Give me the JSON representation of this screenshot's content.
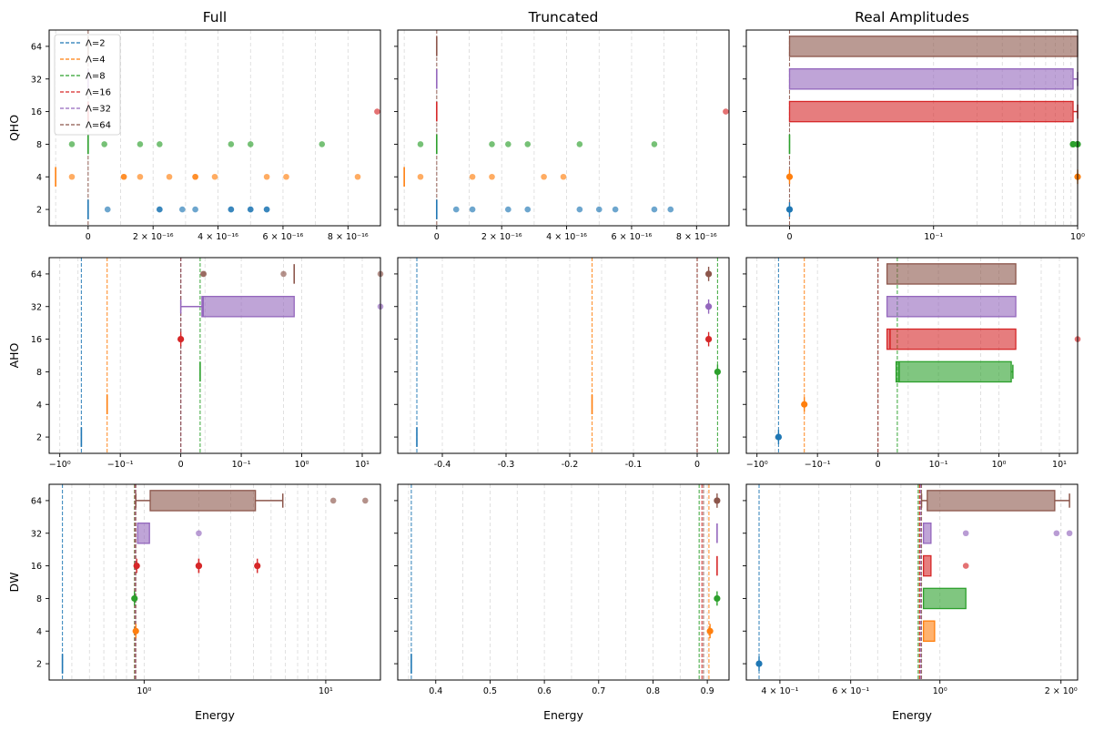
{
  "figure": {
    "column_titles": [
      "Full",
      "Truncated",
      "Real Amplitudes"
    ],
    "row_labels": [
      "QHO",
      "AHO",
      "DW"
    ],
    "xlabel": "Energy",
    "y_categories": [
      "2",
      "4",
      "8",
      "16",
      "32",
      "64"
    ],
    "legend": {
      "location": "upper-left of top-left panel",
      "entries": [
        "Λ=2",
        "Λ=4",
        "Λ=8",
        "Λ=16",
        "Λ=32",
        "Λ=64"
      ]
    },
    "colors": {
      "2": "#1f77b4",
      "4": "#ff7f0e",
      "8": "#2ca02c",
      "16": "#d62728",
      "32": "#9467bd",
      "64": "#8c564b",
      "grid": "#d9d9d9",
      "axis": "#000000"
    }
  },
  "chart_data": [
    {
      "panel": "QHO-Full",
      "type": "box",
      "row": "QHO",
      "col": "Full",
      "xscale": "linear",
      "xlim": [
        -1.2e-16,
        9e-16
      ],
      "xticks": [
        {
          "v": 0,
          "label": "0"
        },
        {
          "v": 2e-16,
          "label": "2 × 10⁻¹⁶"
        },
        {
          "v": 4e-16,
          "label": "4 × 10⁻¹⁶"
        },
        {
          "v": 6e-16,
          "label": "6 × 10⁻¹⁶"
        },
        {
          "v": 8e-16,
          "label": "8 × 10⁻¹⁶"
        }
      ],
      "grid_x": [
        -1e-16,
        1e-16,
        3e-16,
        5e-16,
        7e-16
      ],
      "reference_lines": [
        {
          "lambda": "64",
          "value": 0
        }
      ],
      "series": [
        {
          "lambda": "2",
          "marks": [
            0
          ],
          "outliers": [
            6e-17,
            2.2e-16,
            2.2e-16,
            2.9e-16,
            3.3e-16,
            4.4e-16,
            4.4e-16,
            5e-16,
            5e-16,
            5.5e-16,
            5.5e-16
          ]
        },
        {
          "lambda": "4",
          "marks": [
            -1e-16
          ],
          "outliers": [
            -5e-17,
            1.1e-16,
            1.1e-16,
            1.6e-16,
            2.5e-16,
            3.3e-16,
            3.3e-16,
            3.9e-16,
            5.5e-16,
            6.1e-16,
            8.3e-16
          ]
        },
        {
          "lambda": "8",
          "marks": [
            0
          ],
          "outliers": [
            -5e-17,
            5e-17,
            1.6e-16,
            2.2e-16,
            4.4e-16,
            5e-16,
            7.2e-16
          ]
        },
        {
          "lambda": "16",
          "marks": [
            0
          ],
          "outliers": [
            8.9e-16
          ]
        },
        {
          "lambda": "32",
          "marks": [
            0
          ],
          "outliers": []
        },
        {
          "lambda": "64",
          "marks": [
            0
          ],
          "outliers": []
        }
      ]
    },
    {
      "panel": "QHO-Truncated",
      "type": "box",
      "row": "QHO",
      "col": "Truncated",
      "xscale": "linear",
      "xlim": [
        -1.2e-16,
        9e-16
      ],
      "xticks": [
        {
          "v": 0,
          "label": "0"
        },
        {
          "v": 2e-16,
          "label": "2 × 10⁻¹⁶"
        },
        {
          "v": 4e-16,
          "label": "4 × 10⁻¹⁶"
        },
        {
          "v": 6e-16,
          "label": "6 × 10⁻¹⁶"
        },
        {
          "v": 8e-16,
          "label": "8 × 10⁻¹⁶"
        }
      ],
      "grid_x": [
        -1e-16,
        1e-16,
        3e-16,
        5e-16,
        7e-16
      ],
      "reference_lines": [
        {
          "lambda": "64",
          "value": 0
        }
      ],
      "series": [
        {
          "lambda": "2",
          "marks": [
            0
          ],
          "outliers": [
            6e-17,
            1.1e-16,
            2.2e-16,
            2.8e-16,
            4.4e-16,
            5e-16,
            5.5e-16,
            6.7e-16,
            7.2e-16
          ]
        },
        {
          "lambda": "4",
          "marks": [
            -1e-16
          ],
          "outliers": [
            -5e-17,
            1.1e-16,
            1.7e-16,
            3.3e-16,
            3.9e-16
          ]
        },
        {
          "lambda": "8",
          "marks": [
            0
          ],
          "outliers": [
            -5e-17,
            1.7e-16,
            2.2e-16,
            2.8e-16,
            4.4e-16,
            6.7e-16
          ]
        },
        {
          "lambda": "16",
          "marks": [
            0
          ],
          "outliers": [
            8.9e-16
          ]
        },
        {
          "lambda": "32",
          "marks": [
            0
          ],
          "outliers": []
        },
        {
          "lambda": "64",
          "marks": [
            0
          ],
          "outliers": []
        }
      ]
    },
    {
      "panel": "QHO-RealAmplitudes",
      "type": "box",
      "row": "QHO",
      "col": "Real Amplitudes",
      "xscale": "symlog",
      "linthresh": 0.1,
      "xlim": [
        -0.03,
        1.0
      ],
      "xticks": [
        {
          "v": 0,
          "label": "0"
        },
        {
          "v": 0.1,
          "label": "10⁻¹"
        },
        {
          "v": 1,
          "label": "10⁰"
        }
      ],
      "grid_x": [
        0.2,
        0.3,
        0.4,
        0.5,
        0.6,
        0.7,
        0.8,
        0.9
      ],
      "reference_lines": [
        {
          "lambda": "64",
          "value": 0
        }
      ],
      "series": [
        {
          "lambda": "2",
          "points": [
            0
          ]
        },
        {
          "lambda": "4",
          "points": [
            0,
            1.0
          ]
        },
        {
          "lambda": "8",
          "marks": [
            0
          ],
          "points": [
            0.93,
            1.0
          ]
        },
        {
          "lambda": "16",
          "box": [
            0,
            0.93
          ],
          "whisker_hi": 1.0
        },
        {
          "lambda": "32",
          "box": [
            0,
            0.93
          ],
          "whisker_hi": 1.0
        },
        {
          "lambda": "64",
          "box": [
            0,
            1.0
          ]
        }
      ]
    },
    {
      "panel": "AHO-Full",
      "type": "box",
      "row": "AHO",
      "col": "Full",
      "xscale": "symlog",
      "linthresh": 0.1,
      "xlim": [
        -1.5,
        20
      ],
      "xticks": [
        {
          "v": -1,
          "label": "−10⁰"
        },
        {
          "v": -0.1,
          "label": "−10⁻¹"
        },
        {
          "v": 0,
          "label": "0"
        },
        {
          "v": 0.1,
          "label": "10⁻¹"
        },
        {
          "v": 1,
          "label": "10⁰"
        },
        {
          "v": 10,
          "label": "10¹"
        }
      ],
      "grid_x": [
        -0.5,
        0.04,
        0.5,
        5
      ],
      "reference_lines": [
        {
          "lambda": "2",
          "value": -0.44
        },
        {
          "lambda": "4",
          "value": -0.165
        },
        {
          "lambda": "8",
          "value": 0.032
        },
        {
          "lambda": "16",
          "value": 0
        },
        {
          "lambda": "32",
          "value": 0
        },
        {
          "lambda": "64",
          "value": 0
        }
      ],
      "series": [
        {
          "lambda": "2",
          "marks": [
            -0.44
          ]
        },
        {
          "lambda": "4",
          "marks": [
            -0.165
          ]
        },
        {
          "lambda": "8",
          "marks": [
            0.032
          ]
        },
        {
          "lambda": "16",
          "points": [
            0
          ]
        },
        {
          "lambda": "32",
          "box": [
            0.035,
            0.75
          ],
          "whisker_lo": 0,
          "median": 0.037,
          "outliers": [
            20
          ]
        },
        {
          "lambda": "64",
          "marks": [
            0.75
          ],
          "outliers": [
            0.037,
            0.038,
            0.5,
            20
          ]
        }
      ]
    },
    {
      "panel": "AHO-Truncated",
      "type": "box",
      "row": "AHO",
      "col": "Truncated",
      "xscale": "linear",
      "xlim": [
        -0.47,
        0.05
      ],
      "xticks": [
        {
          "v": -0.4,
          "label": "-0.4"
        },
        {
          "v": -0.3,
          "label": "-0.3"
        },
        {
          "v": -0.2,
          "label": "-0.2"
        },
        {
          "v": -0.1,
          "label": "-0.1"
        },
        {
          "v": 0,
          "label": "0"
        }
      ],
      "grid_x": [
        -0.45,
        -0.35,
        -0.25,
        -0.15,
        -0.05,
        0.05
      ],
      "reference_lines": [
        {
          "lambda": "2",
          "value": -0.44
        },
        {
          "lambda": "4",
          "value": -0.165
        },
        {
          "lambda": "8",
          "value": 0.032
        },
        {
          "lambda": "16",
          "value": 0
        },
        {
          "lambda": "64",
          "value": 0
        }
      ],
      "series": [
        {
          "lambda": "2",
          "marks": [
            -0.44
          ]
        },
        {
          "lambda": "4",
          "marks": [
            -0.165
          ]
        },
        {
          "lambda": "8",
          "points": [
            0.032
          ]
        },
        {
          "lambda": "16",
          "points": [
            0.018
          ]
        },
        {
          "lambda": "32",
          "points": [
            0.018
          ]
        },
        {
          "lambda": "64",
          "points": [
            0.018
          ]
        }
      ]
    },
    {
      "panel": "AHO-RealAmplitudes",
      "type": "box",
      "row": "AHO",
      "col": "Real Amplitudes",
      "xscale": "symlog",
      "linthresh": 0.1,
      "xlim": [
        -1.5,
        20
      ],
      "xticks": [
        {
          "v": -1,
          "label": "−10⁰"
        },
        {
          "v": -0.1,
          "label": "−10⁻¹"
        },
        {
          "v": 0,
          "label": "0"
        },
        {
          "v": 0.1,
          "label": "10⁻¹"
        },
        {
          "v": 1,
          "label": "10⁰"
        },
        {
          "v": 10,
          "label": "10¹"
        }
      ],
      "grid_x": [
        -0.5,
        0.05,
        0.5,
        5
      ],
      "reference_lines": [
        {
          "lambda": "2",
          "value": -0.44
        },
        {
          "lambda": "4",
          "value": -0.165
        },
        {
          "lambda": "8",
          "value": 0.032
        },
        {
          "lambda": "16",
          "value": 0
        },
        {
          "lambda": "64",
          "value": 0
        }
      ],
      "series": [
        {
          "lambda": "2",
          "points": [
            -0.44
          ]
        },
        {
          "lambda": "4",
          "points": [
            -0.165
          ]
        },
        {
          "lambda": "8",
          "box": [
            0.03,
            1.6
          ],
          "median": 0.035,
          "whisker_hi": 1.7
        },
        {
          "lambda": "16",
          "box": [
            0.015,
            1.9
          ],
          "median": 0.02,
          "outliers": [
            20
          ]
        },
        {
          "lambda": "32",
          "box": [
            0.015,
            1.9
          ]
        },
        {
          "lambda": "64",
          "box": [
            0.015,
            1.9
          ]
        }
      ]
    },
    {
      "panel": "DW-Full",
      "type": "box",
      "row": "DW",
      "col": "Full",
      "xscale": "log",
      "xlim": [
        0.3,
        20
      ],
      "xticks": [
        {
          "v": 1,
          "label": "10⁰"
        },
        {
          "v": 10,
          "label": "10¹"
        }
      ],
      "grid_x": [
        0.4,
        0.5,
        0.6,
        0.7,
        0.8,
        0.9,
        2,
        3,
        4,
        5,
        6,
        7,
        8,
        9,
        20
      ],
      "reference_lines": [
        {
          "lambda": "2",
          "value": 0.355
        },
        {
          "lambda": "4",
          "value": 0.89
        },
        {
          "lambda": "8",
          "value": 0.885
        },
        {
          "lambda": "16",
          "value": 0.89
        },
        {
          "lambda": "32",
          "value": 0.895
        },
        {
          "lambda": "64",
          "value": 0.9
        }
      ],
      "series": [
        {
          "lambda": "2",
          "marks": [
            0.355
          ]
        },
        {
          "lambda": "4",
          "points": [
            0.9
          ]
        },
        {
          "lambda": "8",
          "points": [
            0.885
          ]
        },
        {
          "lambda": "16",
          "points": [
            0.91,
            2.0,
            2.0,
            4.2
          ]
        },
        {
          "lambda": "32",
          "box": [
            0.92,
            1.07
          ],
          "outliers": [
            2.0
          ]
        },
        {
          "lambda": "64",
          "box": [
            1.08,
            4.1
          ],
          "whisker_lo": 0.9,
          "whisker_hi": 5.8,
          "outliers": [
            11.0,
            16.5
          ]
        }
      ]
    },
    {
      "panel": "DW-Truncated",
      "type": "box",
      "row": "DW",
      "col": "Truncated",
      "xscale": "linear",
      "xlim": [
        0.33,
        0.94
      ],
      "xticks": [
        {
          "v": 0.4,
          "label": "0.4"
        },
        {
          "v": 0.5,
          "label": "0.5"
        },
        {
          "v": 0.6,
          "label": "0.6"
        },
        {
          "v": 0.7,
          "label": "0.7"
        },
        {
          "v": 0.8,
          "label": "0.8"
        },
        {
          "v": 0.9,
          "label": "0.9"
        }
      ],
      "grid_x": [
        0.35,
        0.45,
        0.55,
        0.65,
        0.75,
        0.85
      ],
      "reference_lines": [
        {
          "lambda": "2",
          "value": 0.355
        },
        {
          "lambda": "4",
          "value": 0.903
        },
        {
          "lambda": "8",
          "value": 0.885
        },
        {
          "lambda": "16",
          "value": 0.89
        },
        {
          "lambda": "64",
          "value": 0.893
        }
      ],
      "series": [
        {
          "lambda": "2",
          "marks": [
            0.355
          ]
        },
        {
          "lambda": "4",
          "points": [
            0.905
          ]
        },
        {
          "lambda": "8",
          "points": [
            0.918
          ]
        },
        {
          "lambda": "16",
          "marks": [
            0.918
          ]
        },
        {
          "lambda": "32",
          "marks": [
            0.918
          ]
        },
        {
          "lambda": "64",
          "points": [
            0.918
          ]
        }
      ]
    },
    {
      "panel": "DW-RealAmplitudes",
      "type": "box",
      "row": "DW",
      "col": "Real Amplitudes",
      "xscale": "log",
      "xlim": [
        0.33,
        2.2
      ],
      "xticks": [
        {
          "v": 0.4,
          "label": "4 × 10⁻¹"
        },
        {
          "v": 0.6,
          "label": "6 × 10⁻¹"
        },
        {
          "v": 1,
          "label": "10⁰"
        },
        {
          "v": 2,
          "label": "2 × 10⁰"
        }
      ],
      "grid_x": [
        0.5,
        0.7,
        0.8,
        0.9,
        2
      ],
      "reference_lines": [
        {
          "lambda": "2",
          "value": 0.355
        },
        {
          "lambda": "4",
          "value": 0.89
        },
        {
          "lambda": "8",
          "value": 0.883
        },
        {
          "lambda": "16",
          "value": 0.89
        },
        {
          "lambda": "32",
          "value": 0.895
        },
        {
          "lambda": "64",
          "value": 0.9
        }
      ],
      "series": [
        {
          "lambda": "2",
          "points": [
            0.355
          ]
        },
        {
          "lambda": "4",
          "box": [
            0.91,
            0.97
          ]
        },
        {
          "lambda": "8",
          "box": [
            0.91,
            1.16
          ]
        },
        {
          "lambda": "16",
          "box": [
            0.91,
            0.95
          ],
          "outliers": [
            1.16
          ]
        },
        {
          "lambda": "32",
          "box": [
            0.91,
            0.95
          ],
          "outliers": [
            1.16,
            1.95,
            2.1
          ]
        },
        {
          "lambda": "64",
          "box": [
            0.93,
            1.93
          ],
          "whisker_lo": 0.9,
          "whisker_hi": 2.1
        }
      ]
    }
  ]
}
